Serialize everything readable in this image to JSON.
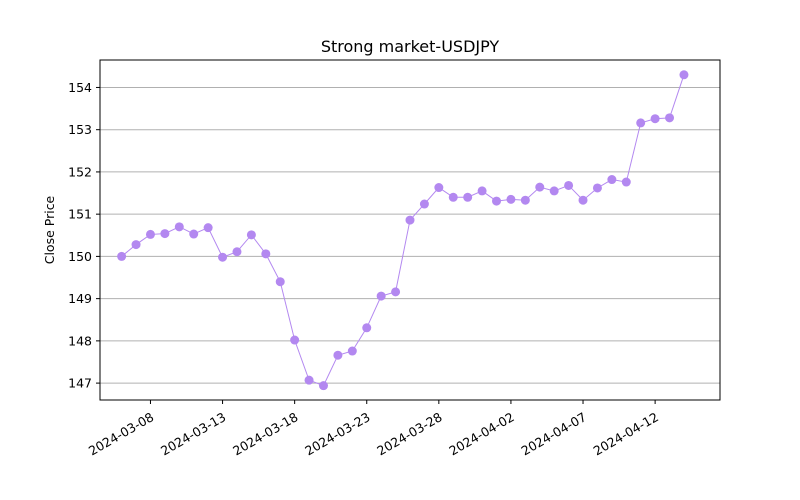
{
  "chart_data": {
    "type": "line",
    "title": "Strong market-USDJPY",
    "xlabel": "",
    "ylabel": "Close Price",
    "color": "#b388f0",
    "grid": {
      "y": true,
      "x": false
    },
    "ylim": [
      146.6,
      154.65
    ],
    "yticks": [
      147,
      148,
      149,
      150,
      151,
      152,
      153,
      154
    ],
    "xlim": [
      "2024-03-04T12:00",
      "2024-04-16T12:00"
    ],
    "xticks": [
      "2024-03-08",
      "2024-03-13",
      "2024-03-18",
      "2024-03-23",
      "2024-03-28",
      "2024-04-02",
      "2024-04-07",
      "2024-04-12"
    ],
    "series": [
      {
        "x": [
          "2024-03-06",
          "2024-03-07",
          "2024-03-08",
          "2024-03-09",
          "2024-03-10",
          "2024-03-11",
          "2024-03-12",
          "2024-03-13",
          "2024-03-14",
          "2024-03-15",
          "2024-03-16",
          "2024-03-17",
          "2024-03-18",
          "2024-03-19",
          "2024-03-20",
          "2024-03-21",
          "2024-03-22",
          "2024-03-23",
          "2024-03-24",
          "2024-03-25",
          "2024-03-26",
          "2024-03-27",
          "2024-03-28",
          "2024-03-29",
          "2024-03-30",
          "2024-03-31",
          "2024-04-01",
          "2024-04-02",
          "2024-04-03",
          "2024-04-04",
          "2024-04-05",
          "2024-04-06",
          "2024-04-07",
          "2024-04-08",
          "2024-04-09",
          "2024-04-10",
          "2024-04-11",
          "2024-04-12",
          "2024-04-13",
          "2024-04-14"
        ],
        "y": [
          150.0,
          150.28,
          150.52,
          150.54,
          150.7,
          150.53,
          150.68,
          149.98,
          150.11,
          150.51,
          150.06,
          149.4,
          148.02,
          147.07,
          146.94,
          147.66,
          147.76,
          148.31,
          149.06,
          149.16,
          150.86,
          151.24,
          151.63,
          151.4,
          151.4,
          151.55,
          151.31,
          151.35,
          151.33,
          151.64,
          151.55,
          151.68,
          151.33,
          151.62,
          151.82,
          151.76,
          153.16,
          153.26,
          153.28,
          154.3
        ]
      }
    ]
  }
}
